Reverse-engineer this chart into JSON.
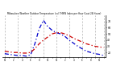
{
  "title": "Milwaukee Weather Outdoor Temperature (vs) THSW Index per Hour (Last 24 Hours)",
  "hours": [
    0,
    1,
    2,
    3,
    4,
    5,
    6,
    7,
    8,
    9,
    10,
    11,
    12,
    13,
    14,
    15,
    16,
    17,
    18,
    19,
    20,
    21,
    22,
    23
  ],
  "temp": [
    22,
    21,
    20,
    20,
    19,
    19,
    20,
    26,
    34,
    40,
    45,
    50,
    52,
    52,
    50,
    47,
    43,
    40,
    37,
    34,
    32,
    30,
    29,
    28
  ],
  "thsw": [
    18,
    17,
    16,
    15,
    15,
    14,
    16,
    34,
    58,
    72,
    62,
    56,
    52,
    50,
    46,
    40,
    35,
    30,
    26,
    22,
    20,
    18,
    17,
    15
  ],
  "temp_color": "#cc0000",
  "thsw_color": "#0000cc",
  "ylim_min": 12,
  "ylim_max": 80,
  "ytick_labels": [
    "20",
    "30",
    "40",
    "50",
    "60",
    "70"
  ],
  "ytick_vals": [
    20,
    30,
    40,
    50,
    60,
    70
  ],
  "bg_color": "#ffffff",
  "grid_color": "#999999",
  "grid_positions": [
    0,
    3,
    6,
    9,
    12,
    15,
    18,
    21,
    23
  ],
  "figsize": [
    1.6,
    0.87
  ],
  "dpi": 100
}
